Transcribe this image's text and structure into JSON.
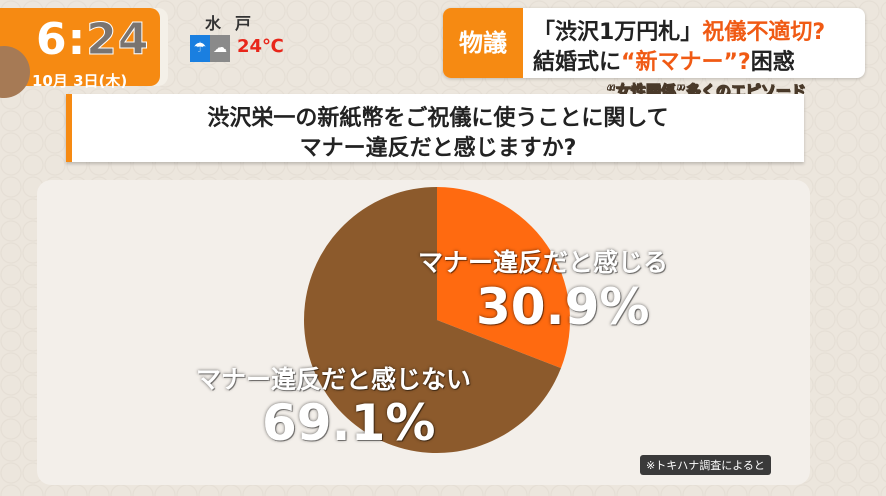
{
  "clock": {
    "time_hour": "6:",
    "time_min": "24",
    "date": "10月 3日(木)"
  },
  "weather": {
    "city": "水戸",
    "icon_now": "umbrella-rain-icon",
    "icon_next": "cloud-icon",
    "temp": "24℃"
  },
  "headline": {
    "tag": "物議",
    "line1_a": "「渋沢1万円札」",
    "line1_b": "祝儀不適切?",
    "line2_a": "結婚式に",
    "line2_b": "“新マナー”?",
    "line2_c": "困惑",
    "sub": "“女性関係”多くのエピソード"
  },
  "question": {
    "line1": "渋沢栄一の新紙幣をご祝儀に使うことに関して",
    "line2": "マナー違反だと感じますか?"
  },
  "chart_data": {
    "type": "pie",
    "slices": [
      {
        "label": "マナー違反だと感じる",
        "value": 30.9,
        "display": "30.9%",
        "color": "#ff6a10"
      },
      {
        "label": "マナー違反だと感じない",
        "value": 69.1,
        "display": "69.1%",
        "color": "#8c5a2c"
      }
    ],
    "start": "top",
    "direction": "clockwise"
  },
  "source": "※トキハナ調査によると"
}
